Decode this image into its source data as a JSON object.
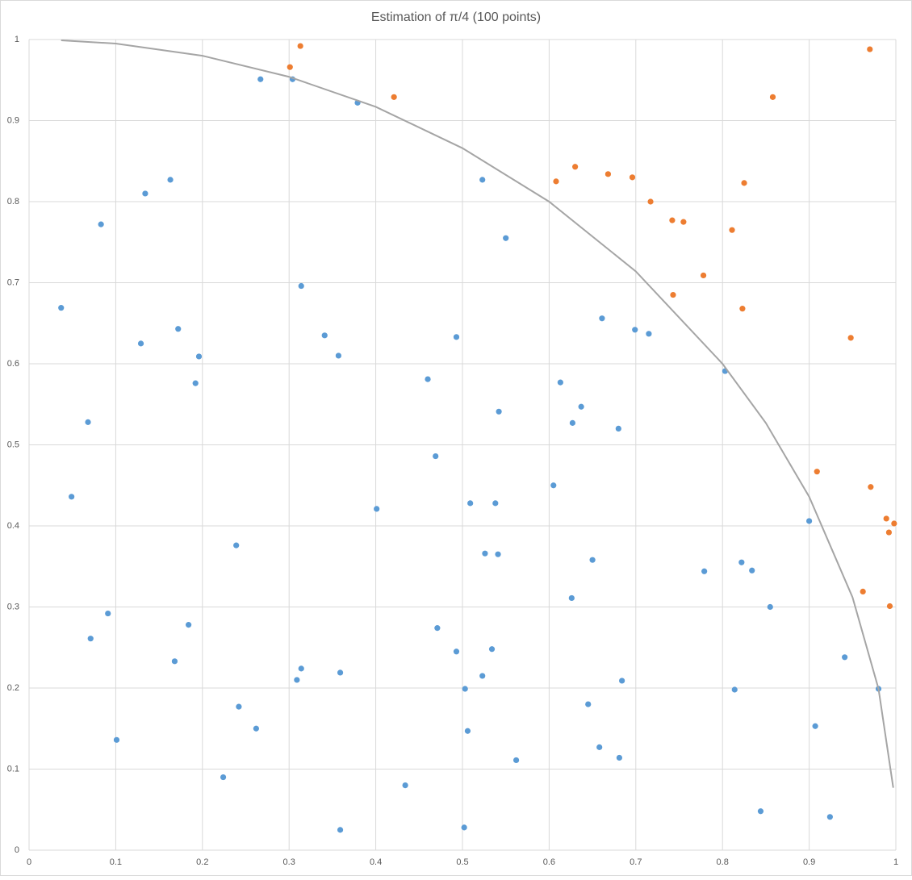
{
  "chart_data": {
    "type": "scatter",
    "title": "Estimation of π/4 (100 points)",
    "xlim": [
      0,
      1
    ],
    "ylim": [
      0,
      1
    ],
    "xticks": [
      0,
      0.1,
      0.2,
      0.3,
      0.4,
      0.5,
      0.6,
      0.7,
      0.8,
      0.9,
      1
    ],
    "yticks": [
      0,
      0.1,
      0.2,
      0.3,
      0.4,
      0.5,
      0.6,
      0.7,
      0.8,
      0.9,
      1
    ],
    "grid": true,
    "series": [
      {
        "color": "#5b9bd5",
        "x": [
          0.037,
          0.049,
          0.068,
          0.071,
          0.083,
          0.091,
          0.101,
          0.129,
          0.134,
          0.163,
          0.168,
          0.172,
          0.184,
          0.192,
          0.196,
          0.224,
          0.239,
          0.242,
          0.262,
          0.267,
          0.304,
          0.309,
          0.314,
          0.314,
          0.341,
          0.357,
          0.359,
          0.359,
          0.379,
          0.401,
          0.434,
          0.46,
          0.469,
          0.471,
          0.493,
          0.493,
          0.502,
          0.503,
          0.506,
          0.509,
          0.523,
          0.523,
          0.526,
          0.534,
          0.538,
          0.541,
          0.542,
          0.55,
          0.562,
          0.605,
          0.613,
          0.626,
          0.627,
          0.637,
          0.645,
          0.65,
          0.658,
          0.661,
          0.68,
          0.681,
          0.684,
          0.699,
          0.715,
          0.779,
          0.803,
          0.814,
          0.822,
          0.834,
          0.844,
          0.855,
          0.9,
          0.907,
          0.924,
          0.941,
          0.98
        ],
        "values": [
          0.669,
          0.436,
          0.528,
          0.261,
          0.772,
          0.292,
          0.136,
          0.625,
          0.81,
          0.827,
          0.233,
          0.643,
          0.278,
          0.576,
          0.609,
          0.09,
          0.376,
          0.177,
          0.15,
          0.951,
          0.951,
          0.21,
          0.224,
          0.696,
          0.635,
          0.61,
          0.219,
          0.025,
          0.922,
          0.421,
          0.08,
          0.581,
          0.486,
          0.274,
          0.245,
          0.633,
          0.028,
          0.199,
          0.147,
          0.428,
          0.827,
          0.215,
          0.366,
          0.248,
          0.428,
          0.365,
          0.541,
          0.755,
          0.111,
          0.45,
          0.577,
          0.311,
          0.527,
          0.547,
          0.18,
          0.358,
          0.127,
          0.656,
          0.52,
          0.114,
          0.209,
          0.642,
          0.637,
          0.344,
          0.591,
          0.198,
          0.355,
          0.345,
          0.048,
          0.3,
          0.406,
          0.153,
          0.041,
          0.238,
          0.199
        ]
      },
      {
        "color": "#ed7d31",
        "x": [
          0.301,
          0.313,
          0.421,
          0.608,
          0.63,
          0.668,
          0.696,
          0.717,
          0.742,
          0.755,
          0.743,
          0.778,
          0.811,
          0.825,
          0.823,
          0.858,
          0.909,
          0.948,
          0.97,
          0.971,
          0.962,
          0.989,
          0.992,
          0.998,
          0.993
        ],
        "values": [
          0.966,
          0.992,
          0.929,
          0.825,
          0.843,
          0.834,
          0.83,
          0.8,
          0.777,
          0.775,
          0.685,
          0.709,
          0.765,
          0.823,
          0.668,
          0.929,
          0.467,
          0.632,
          0.988,
          0.448,
          0.319,
          0.409,
          0.392,
          0.403,
          0.301
        ]
      },
      {
        "color": "#a5a5a5",
        "line": true,
        "x": [
          0.037,
          0.1,
          0.2,
          0.3,
          0.4,
          0.5,
          0.6,
          0.7,
          0.8,
          0.85,
          0.9,
          0.95,
          0.98,
          0.997
        ],
        "values": [
          0.999,
          0.995,
          0.98,
          0.954,
          0.917,
          0.866,
          0.8,
          0.714,
          0.6,
          0.527,
          0.436,
          0.312,
          0.199,
          0.077
        ]
      }
    ]
  }
}
